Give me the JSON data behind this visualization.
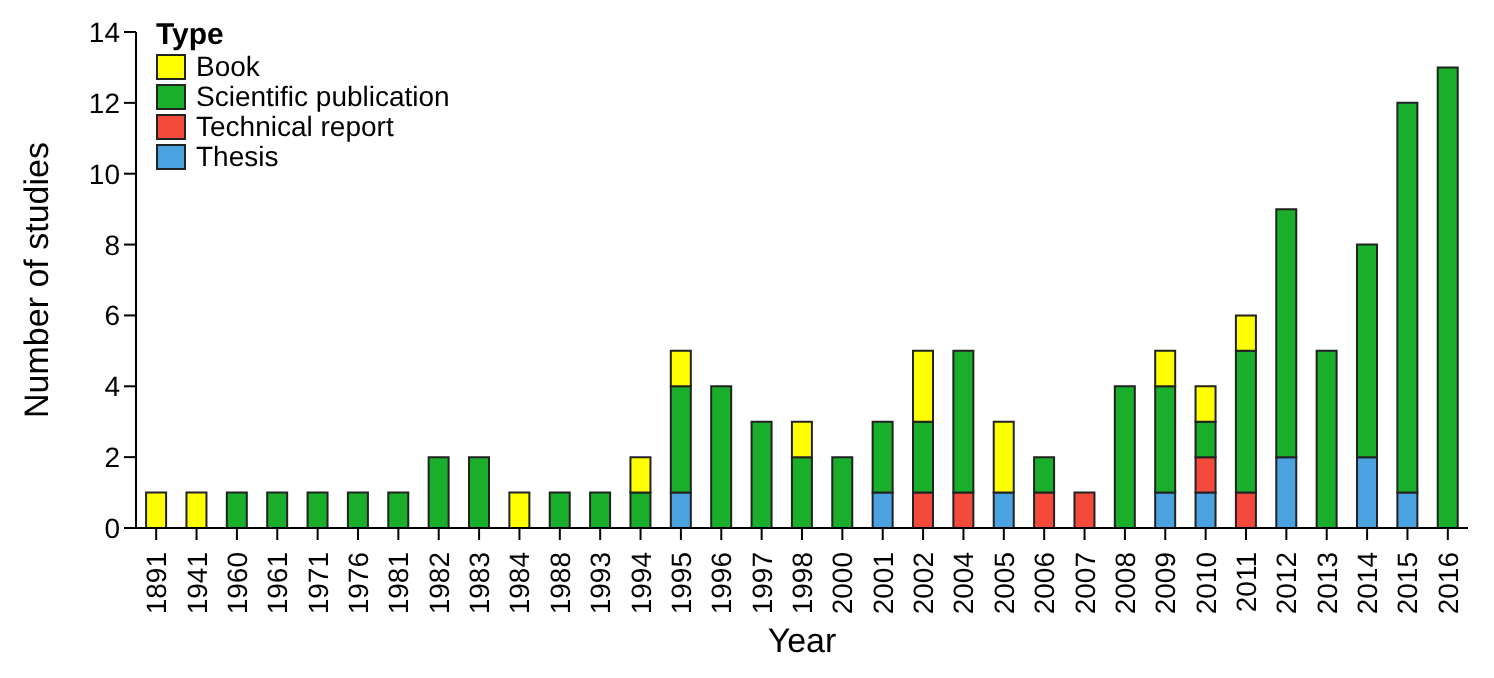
{
  "chart_data": {
    "type": "bar",
    "stacked": true,
    "xlabel": "Year",
    "ylabel": "Number of studies",
    "legend_title": "Type",
    "legend": "top left",
    "categories": [
      "1891",
      "1941",
      "1960",
      "1961",
      "1971",
      "1976",
      "1981",
      "1982",
      "1983",
      "1984",
      "1988",
      "1993",
      "1994",
      "1995",
      "1996",
      "1997",
      "1998",
      "2000",
      "2001",
      "2002",
      "2004",
      "2005",
      "2006",
      "2007",
      "2008",
      "2009",
      "2010",
      "2011",
      "2012",
      "2013",
      "2014",
      "2015",
      "2016"
    ],
    "series": [
      {
        "name": "Thesis",
        "color": "#4aa3e0",
        "values": [
          0,
          0,
          0,
          0,
          0,
          0,
          0,
          0,
          0,
          0,
          0,
          0,
          0,
          1,
          0,
          0,
          0,
          0,
          1,
          0,
          0,
          1,
          0,
          0,
          0,
          1,
          1,
          0,
          2,
          0,
          2,
          1,
          0
        ]
      },
      {
        "name": "Technical report",
        "color": "#f44a3c",
        "values": [
          0,
          0,
          0,
          0,
          0,
          0,
          0,
          0,
          0,
          0,
          0,
          0,
          0,
          0,
          0,
          0,
          0,
          0,
          0,
          1,
          1,
          0,
          1,
          1,
          0,
          0,
          1,
          1,
          0,
          0,
          0,
          0,
          0
        ]
      },
      {
        "name": "Scientific publication",
        "color": "#1aaf2a",
        "values": [
          0,
          0,
          1,
          1,
          1,
          1,
          1,
          2,
          2,
          0,
          1,
          1,
          1,
          3,
          4,
          3,
          2,
          2,
          2,
          2,
          4,
          0,
          1,
          0,
          4,
          3,
          1,
          4,
          7,
          5,
          6,
          11,
          13
        ]
      },
      {
        "name": "Book",
        "color": "#ffff00",
        "values": [
          1,
          1,
          0,
          0,
          0,
          0,
          0,
          0,
          0,
          1,
          0,
          0,
          1,
          1,
          0,
          0,
          1,
          0,
          0,
          2,
          0,
          2,
          0,
          0,
          0,
          1,
          1,
          1,
          0,
          0,
          0,
          0,
          0
        ]
      }
    ],
    "ylim": [
      0,
      14
    ],
    "yticks": [
      0,
      2,
      4,
      6,
      8,
      10,
      12,
      14
    ]
  }
}
